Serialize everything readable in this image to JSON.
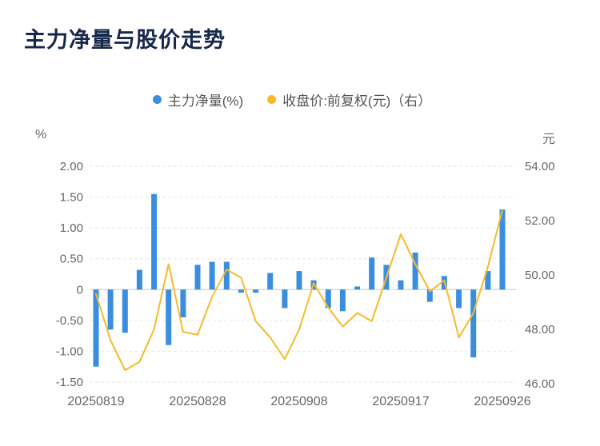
{
  "title": "主力净量与股价走势",
  "legend": [
    {
      "label": "主力净量(%)",
      "color": "#3b8ede"
    },
    {
      "label": "收盘价:前复权(元)（右）",
      "color": "#f7ba2a"
    }
  ],
  "left_axis": {
    "unit": "%",
    "ticks": [
      "2.00",
      "1.50",
      "1.00",
      "0.50",
      "0",
      "-0.50",
      "-1.00",
      "-1.50"
    ],
    "max": 2.0,
    "min": -1.5
  },
  "right_axis": {
    "unit": "元",
    "ticks": [
      "54.00",
      "52.00",
      "50.00",
      "48.00",
      "46.00"
    ],
    "max": 54.0,
    "min": 46.0
  },
  "x_axis": {
    "tick_labels": [
      "20250819",
      "20250828",
      "20250908",
      "20250917",
      "20250926"
    ],
    "tick_indices": [
      0,
      7,
      14,
      21,
      28
    ]
  },
  "chart_data": {
    "type": "bar+line",
    "title": "主力净量与股价走势",
    "x": [
      "20250819",
      "20250820",
      "20250821",
      "20250822",
      "20250825",
      "20250826",
      "20250827",
      "20250828",
      "20250829",
      "20250901",
      "20250902",
      "20250903",
      "20250904",
      "20250905",
      "20250908",
      "20250909",
      "20250910",
      "20250911",
      "20250912",
      "20250915",
      "20250916",
      "20250917",
      "20250918",
      "20250919",
      "20250922",
      "20250923",
      "20250924",
      "20250925",
      "20250926"
    ],
    "series": [
      {
        "name": "主力净量(%)",
        "type": "bar",
        "axis": "left",
        "color": "#3b8ede",
        "values": [
          -1.25,
          -0.65,
          -0.7,
          0.32,
          1.55,
          -0.9,
          -0.45,
          0.4,
          0.45,
          0.45,
          -0.05,
          -0.05,
          0.27,
          -0.3,
          0.3,
          0.15,
          -0.3,
          -0.35,
          0.05,
          0.52,
          0.4,
          0.15,
          0.6,
          -0.2,
          0.22,
          -0.3,
          -1.1,
          0.3,
          1.3
        ]
      },
      {
        "name": "收盘价:前复权(元)",
        "type": "line",
        "axis": "right",
        "color": "#f7ba2a",
        "values": [
          49.3,
          47.6,
          46.5,
          46.8,
          48.0,
          50.4,
          47.9,
          47.8,
          49.2,
          50.2,
          49.9,
          48.3,
          47.7,
          46.9,
          48.0,
          49.7,
          48.8,
          48.1,
          48.6,
          48.3,
          49.9,
          51.5,
          50.4,
          49.4,
          49.8,
          47.7,
          48.6,
          50.3,
          52.4
        ]
      }
    ],
    "left_ylim": [
      -1.5,
      2.0
    ],
    "right_ylim": [
      46.0,
      54.0
    ],
    "grid": true,
    "legend_position": "top-center"
  }
}
